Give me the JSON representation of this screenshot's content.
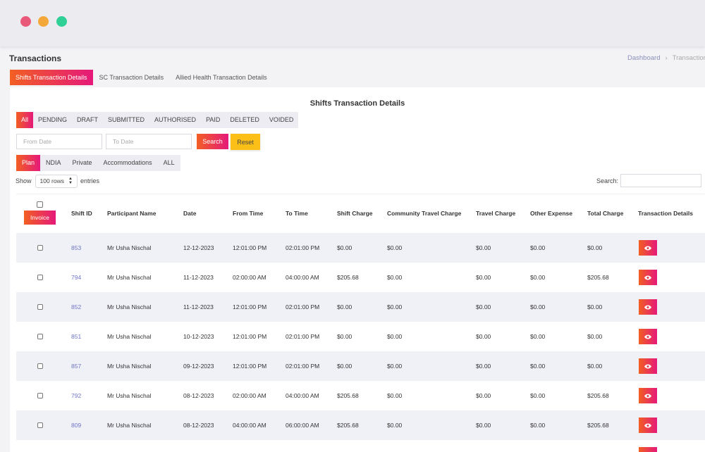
{
  "window": {
    "controls": [
      "close",
      "minimize",
      "maximize"
    ]
  },
  "page": {
    "title": "Transactions"
  },
  "breadcrumb": {
    "home": "Dashboard",
    "separator": "›",
    "current": "Transaction"
  },
  "main_tabs": [
    {
      "label": "Shifts Transaction Details",
      "active": true
    },
    {
      "label": "SC Transaction Details",
      "active": false
    },
    {
      "label": "Allied Health Transaction Details",
      "active": false
    }
  ],
  "card": {
    "title": "Shifts Transaction Details"
  },
  "status_tabs": [
    {
      "label": "All",
      "active": true
    },
    {
      "label": "PENDING",
      "active": false
    },
    {
      "label": "DRAFT",
      "active": false
    },
    {
      "label": "SUBMITTED",
      "active": false
    },
    {
      "label": "AUTHORISED",
      "active": false
    },
    {
      "label": "PAID",
      "active": false
    },
    {
      "label": "DELETED",
      "active": false
    },
    {
      "label": "VOIDED",
      "active": false
    }
  ],
  "filters": {
    "from_date_placeholder": "From Date",
    "to_date_placeholder": "To Date",
    "search_label": "Search",
    "reset_label": "Reset"
  },
  "type_tabs": [
    {
      "label": "Plan",
      "active": true
    },
    {
      "label": "NDIA",
      "active": false
    },
    {
      "label": "Private",
      "active": false
    },
    {
      "label": "Accommodations",
      "active": false
    },
    {
      "label": "ALL",
      "active": false
    }
  ],
  "table_controls": {
    "show_label": "Show",
    "rows_value": "100 rows",
    "entries_label": "entries",
    "search_label": "Search:",
    "search_value": ""
  },
  "table": {
    "invoice_label": "Invoice",
    "headers": [
      "Shift ID",
      "Participant Name",
      "Date",
      "From Time",
      "To Time",
      "Shift Charge",
      "Community Travel Charge",
      "Travel Charge",
      "Other Expense",
      "Total Charge",
      "Transaction Details"
    ],
    "rows": [
      {
        "shift_id": "853",
        "participant": "Mr Usha Nischal",
        "date": "12-12-2023",
        "from": "12:01:00 PM",
        "to": "02:01:00 PM",
        "shift_charge": "$0.00",
        "community_travel": "$0.00",
        "travel": "$0.00",
        "other": "$0.00",
        "total": "$0.00"
      },
      {
        "shift_id": "794",
        "participant": "Mr Usha Nischal",
        "date": "11-12-2023",
        "from": "02:00:00 AM",
        "to": "04:00:00 AM",
        "shift_charge": "$205.68",
        "community_travel": "$0.00",
        "travel": "$0.00",
        "other": "$0.00",
        "total": "$205.68"
      },
      {
        "shift_id": "852",
        "participant": "Mr Usha Nischal",
        "date": "11-12-2023",
        "from": "12:01:00 PM",
        "to": "02:01:00 PM",
        "shift_charge": "$0.00",
        "community_travel": "$0.00",
        "travel": "$0.00",
        "other": "$0.00",
        "total": "$0.00"
      },
      {
        "shift_id": "851",
        "participant": "Mr Usha Nischal",
        "date": "10-12-2023",
        "from": "12:01:00 PM",
        "to": "02:01:00 PM",
        "shift_charge": "$0.00",
        "community_travel": "$0.00",
        "travel": "$0.00",
        "other": "$0.00",
        "total": "$0.00"
      },
      {
        "shift_id": "857",
        "participant": "Mr Usha Nischal",
        "date": "09-12-2023",
        "from": "12:01:00 PM",
        "to": "02:01:00 PM",
        "shift_charge": "$0.00",
        "community_travel": "$0.00",
        "travel": "$0.00",
        "other": "$0.00",
        "total": "$0.00"
      },
      {
        "shift_id": "792",
        "participant": "Mr Usha Nischal",
        "date": "08-12-2023",
        "from": "02:00:00 AM",
        "to": "04:00:00 AM",
        "shift_charge": "$205.68",
        "community_travel": "$0.00",
        "travel": "$0.00",
        "other": "$0.00",
        "total": "$205.68"
      },
      {
        "shift_id": "809",
        "participant": "Mr Usha Nischal",
        "date": "08-12-2023",
        "from": "04:00:00 AM",
        "to": "06:00:00 AM",
        "shift_charge": "$205.68",
        "community_travel": "$0.00",
        "travel": "$0.00",
        "other": "$0.00",
        "total": "$205.68"
      },
      {
        "shift_id": "",
        "participant": "",
        "date": "",
        "from": "",
        "to": "",
        "shift_charge": "",
        "community_travel": "",
        "travel": "",
        "other": "",
        "total": ""
      }
    ]
  },
  "colors": {
    "accent_start": "#f25f22",
    "accent_end": "#e5197a",
    "reset": "#fbbf17",
    "link": "#6e76c4"
  },
  "icons": {
    "view": "eye-icon",
    "select_arrows": "chevron-updown-icon"
  }
}
